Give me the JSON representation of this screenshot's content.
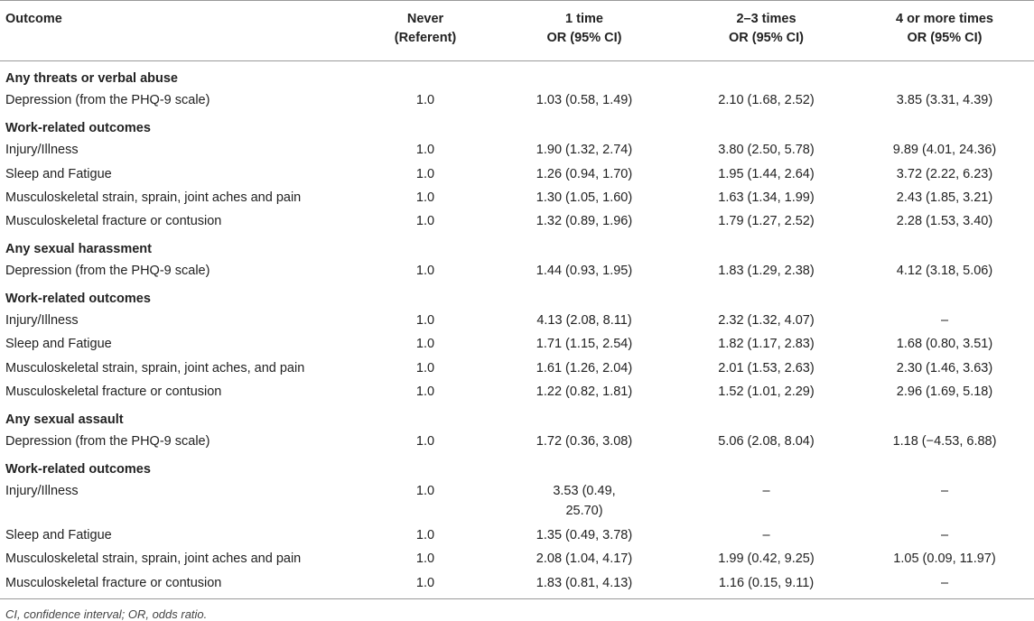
{
  "table": {
    "headers": [
      {
        "line1": "Outcome",
        "line2": ""
      },
      {
        "line1": "Never",
        "line2": "(Referent)"
      },
      {
        "line1": "1 time",
        "line2": "OR (95% CI)"
      },
      {
        "line1": "2–3 times",
        "line2": "OR (95% CI)"
      },
      {
        "line1": "4 or more times",
        "line2": "OR (95% CI)"
      }
    ],
    "rows": [
      {
        "type": "section",
        "label": "Any threats or verbal abuse"
      },
      {
        "type": "data",
        "label": "Depression (from the PHQ-9 scale)",
        "never": "1.0",
        "one": "1.03 (0.58, 1.49)",
        "two_three": "2.10 (1.68, 2.52)",
        "four_plus": "3.85 (3.31, 4.39)"
      },
      {
        "type": "section",
        "label": "Work-related outcomes"
      },
      {
        "type": "data",
        "label": "Injury/Illness",
        "never": "1.0",
        "one": "1.90 (1.32, 2.74)",
        "two_three": "3.80 (2.50, 5.78)",
        "four_plus": "9.89 (4.01, 24.36)"
      },
      {
        "type": "data",
        "label": "Sleep and Fatigue",
        "never": "1.0",
        "one": "1.26 (0.94, 1.70)",
        "two_three": "1.95 (1.44, 2.64)",
        "four_plus": "3.72 (2.22, 6.23)"
      },
      {
        "type": "data",
        "label": "Musculoskeletal strain, sprain, joint aches and pain",
        "never": "1.0",
        "one": "1.30 (1.05, 1.60)",
        "two_three": "1.63 (1.34, 1.99)",
        "four_plus": "2.43 (1.85, 3.21)"
      },
      {
        "type": "data",
        "label": "Musculoskeletal fracture or contusion",
        "never": "1.0",
        "one": "1.32 (0.89, 1.96)",
        "two_three": "1.79 (1.27, 2.52)",
        "four_plus": "2.28 (1.53, 3.40)"
      },
      {
        "type": "section",
        "label": "Any sexual harassment"
      },
      {
        "type": "data",
        "label": "Depression (from the PHQ-9 scale)",
        "never": "1.0",
        "one": "1.44 (0.93, 1.95)",
        "two_three": "1.83 (1.29, 2.38)",
        "four_plus": "4.12 (3.18, 5.06)"
      },
      {
        "type": "section",
        "label": "Work-related outcomes"
      },
      {
        "type": "data",
        "label": "Injury/Illness",
        "never": "1.0",
        "one": "4.13 (2.08, 8.11)",
        "two_three": "2.32 (1.32, 4.07)",
        "four_plus": "–"
      },
      {
        "type": "data",
        "label": "Sleep and Fatigue",
        "never": "1.0",
        "one": "1.71 (1.15, 2.54)",
        "two_three": "1.82 (1.17, 2.83)",
        "four_plus": "1.68 (0.80, 3.51)"
      },
      {
        "type": "data",
        "label": "Musculoskeletal strain, sprain, joint aches, and pain",
        "never": "1.0",
        "one": "1.61 (1.26, 2.04)",
        "two_three": "2.01 (1.53, 2.63)",
        "four_plus": "2.30 (1.46, 3.63)"
      },
      {
        "type": "data",
        "label": "Musculoskeletal fracture or contusion",
        "never": "1.0",
        "one": "1.22 (0.82, 1.81)",
        "two_three": "1.52 (1.01, 2.29)",
        "four_plus": "2.96 (1.69, 5.18)"
      },
      {
        "type": "section",
        "label": "Any sexual assault"
      },
      {
        "type": "data",
        "label": "Depression (from the PHQ-9 scale)",
        "never": "1.0",
        "one": "1.72 (0.36, 3.08)",
        "two_three": "5.06 (2.08, 8.04)",
        "four_plus": "1.18 (−4.53, 6.88)"
      },
      {
        "type": "section",
        "label": "Work-related outcomes"
      },
      {
        "type": "data",
        "tall": true,
        "label": "Injury/Illness",
        "never": "1.0",
        "one": "3.53 (0.49, 25.70)",
        "two_three": "–",
        "four_plus": "–"
      },
      {
        "type": "data",
        "label": "Sleep and Fatigue",
        "never": "1.0",
        "one": "1.35 (0.49, 3.78)",
        "two_three": "–",
        "four_plus": "–"
      },
      {
        "type": "data",
        "label": "Musculoskeletal strain, sprain, joint aches and pain",
        "never": "1.0",
        "one": "2.08 (1.04, 4.17)",
        "two_three": "1.99 (0.42, 9.25)",
        "four_plus": "1.05 (0.09, 11.97)"
      },
      {
        "type": "data",
        "label": "Musculoskeletal fracture or contusion",
        "never": "1.0",
        "one": "1.83 (0.81, 4.13)",
        "two_three": "1.16 (0.15, 9.11)",
        "four_plus": "–"
      }
    ]
  },
  "footnote": "CI, confidence interval; OR, odds ratio."
}
